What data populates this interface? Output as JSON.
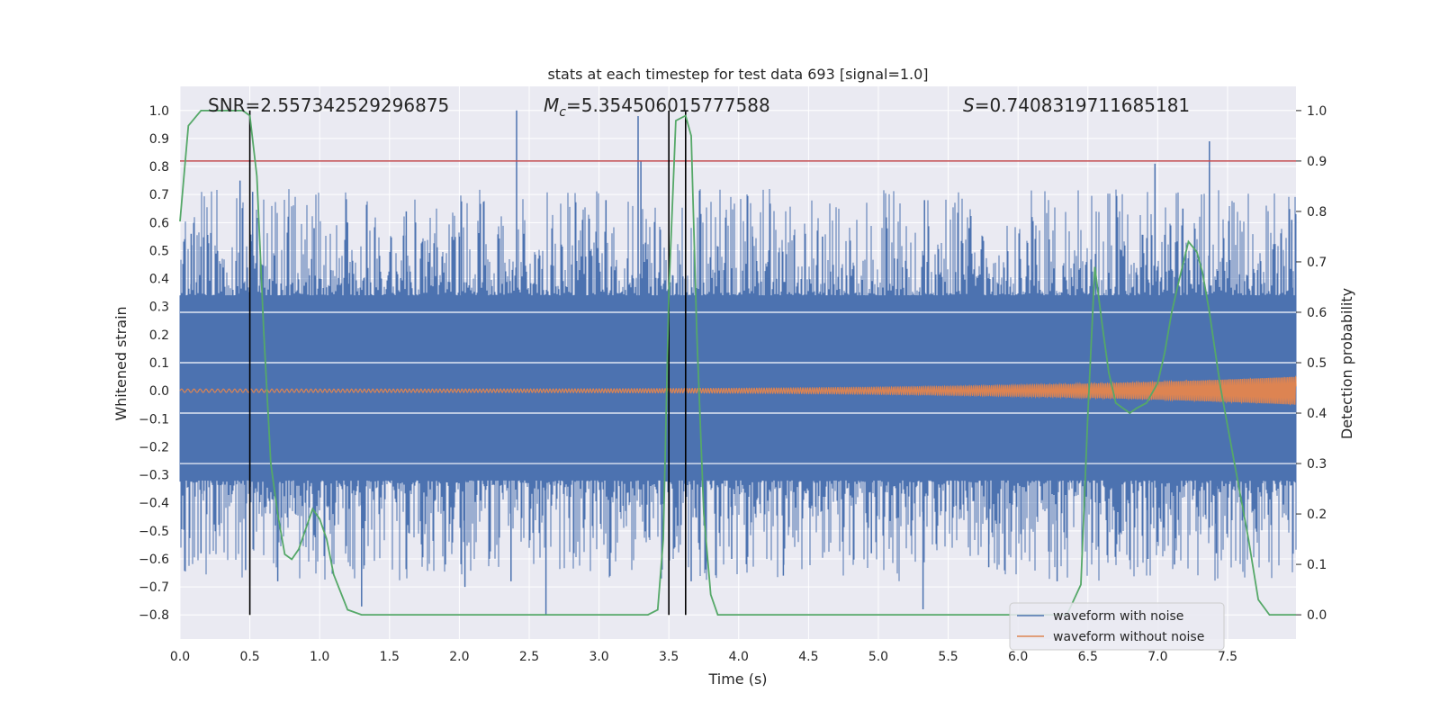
{
  "chart_data": {
    "type": "line",
    "title": "stats at each timestep for test data 693 [signal=1.0]",
    "xlabel": "Time (s)",
    "ylabel": "Whitened strain",
    "ylabel_right": "Detection probability",
    "xlim": [
      0.0,
      7.99
    ],
    "ylim": [
      -0.886,
      1.086
    ],
    "ylim_right": [
      -0.048,
      1.048
    ],
    "xticks": [
      "0.0",
      "0.5",
      "1.0",
      "1.5",
      "2.0",
      "2.5",
      "3.0",
      "3.5",
      "4.0",
      "4.5",
      "5.0",
      "5.5",
      "6.0",
      "6.5",
      "7.0",
      "7.5"
    ],
    "yticks": [
      "-0.8",
      "-0.7",
      "-0.6",
      "-0.5",
      "-0.4",
      "-0.3",
      "-0.2",
      "-0.1",
      "0.0",
      "0.1",
      "0.2",
      "0.3",
      "0.4",
      "0.5",
      "0.6",
      "0.7",
      "0.8",
      "0.9",
      "1.0"
    ],
    "yticks_right": [
      "0.0",
      "0.1",
      "0.2",
      "0.3",
      "0.4",
      "0.5",
      "0.6",
      "0.7",
      "0.8",
      "0.9",
      "1.0"
    ],
    "annotations": {
      "snr": "SNR=2.557342529296875",
      "mc_symbol": "M",
      "mc_subscript": "c",
      "mc_value": "=5.354506015777588",
      "s_symbol": "S",
      "s_value": "=0.7408319711685181"
    },
    "threshold": 0.82,
    "vertical_lines": [
      0.5,
      3.5,
      3.62
    ],
    "vertical_line_range": [
      -0.8,
      1.0
    ],
    "noise_waveform": {
      "name": "waveform with noise",
      "color": "#4c72b0",
      "fill_upper": 0.34,
      "fill_lower": -0.32,
      "peaks": [
        [
          0.43,
          0.75
        ],
        [
          0.52,
          0.71
        ],
        [
          0.96,
          0.58
        ],
        [
          1.62,
          0.64
        ],
        [
          2.41,
          1.0
        ],
        [
          3.05,
          0.68
        ],
        [
          3.28,
          0.98
        ],
        [
          3.3,
          0.82
        ],
        [
          5.33,
          0.68
        ],
        [
          6.98,
          0.81
        ],
        [
          7.37,
          0.89
        ],
        [
          7.18,
          0.65
        ],
        [
          4.1,
          0.55
        ],
        [
          6.1,
          0.62
        ],
        [
          7.96,
          0.61
        ],
        [
          0.08,
          0.56
        ],
        [
          1.2,
          0.6
        ],
        [
          2.0,
          0.55
        ],
        [
          4.6,
          0.55
        ],
        [
          5.65,
          0.58
        ]
      ],
      "troughs": [
        [
          2.62,
          -0.8
        ],
        [
          5.32,
          -0.78
        ],
        [
          1.3,
          -0.77
        ],
        [
          0.47,
          -0.64
        ],
        [
          0.7,
          -0.68
        ],
        [
          2.04,
          -0.7
        ],
        [
          2.37,
          -0.68
        ],
        [
          3.66,
          -0.68
        ],
        [
          6.28,
          -0.68
        ],
        [
          7.12,
          -0.62
        ],
        [
          7.42,
          -0.58
        ],
        [
          4.32,
          -0.66
        ],
        [
          5.79,
          -0.63
        ],
        [
          0.15,
          -0.58
        ],
        [
          4.95,
          -0.58
        ],
        [
          6.93,
          -0.6
        ],
        [
          1.9,
          -0.62
        ],
        [
          3.95,
          -0.6
        ]
      ]
    },
    "clean_waveform": {
      "name": "waveform without noise",
      "color": "#dd8452",
      "amplitude_start": 0.006,
      "amplitude_end": 0.05,
      "freq_start": 22,
      "freq_end": 55
    },
    "detection_probability": {
      "name": "detection probability",
      "color": "#55a868",
      "x": [
        0.0,
        0.06,
        0.15,
        0.25,
        0.45,
        0.5,
        0.55,
        0.6,
        0.65,
        0.7,
        0.75,
        0.8,
        0.85,
        0.95,
        1.0,
        1.05,
        1.1,
        1.2,
        1.3,
        3.35,
        3.42,
        3.46,
        3.5,
        3.55,
        3.62,
        3.66,
        3.7,
        3.75,
        3.8,
        3.85,
        6.35,
        6.45,
        6.5,
        6.55,
        6.6,
        6.65,
        6.7,
        6.8,
        6.85,
        6.92,
        7.0,
        7.05,
        7.1,
        7.15,
        7.22,
        7.28,
        7.32,
        7.37,
        7.45,
        7.55,
        7.65,
        7.72,
        7.8,
        7.99
      ],
      "y": [
        0.78,
        0.97,
        1.0,
        1.0,
        1.0,
        0.99,
        0.87,
        0.56,
        0.3,
        0.2,
        0.12,
        0.11,
        0.13,
        0.21,
        0.19,
        0.15,
        0.08,
        0.01,
        0.0,
        0.0,
        0.01,
        0.15,
        0.64,
        0.98,
        0.99,
        0.95,
        0.56,
        0.2,
        0.04,
        0.0,
        0.0,
        0.06,
        0.4,
        0.69,
        0.58,
        0.48,
        0.42,
        0.4,
        0.41,
        0.42,
        0.46,
        0.52,
        0.6,
        0.66,
        0.74,
        0.72,
        0.68,
        0.6,
        0.45,
        0.3,
        0.15,
        0.03,
        0.0,
        0.0
      ]
    },
    "threshold_color": "#c44e52",
    "legend": {
      "location": "lower-right",
      "entries": [
        "waveform with noise",
        "waveform without noise"
      ]
    }
  }
}
